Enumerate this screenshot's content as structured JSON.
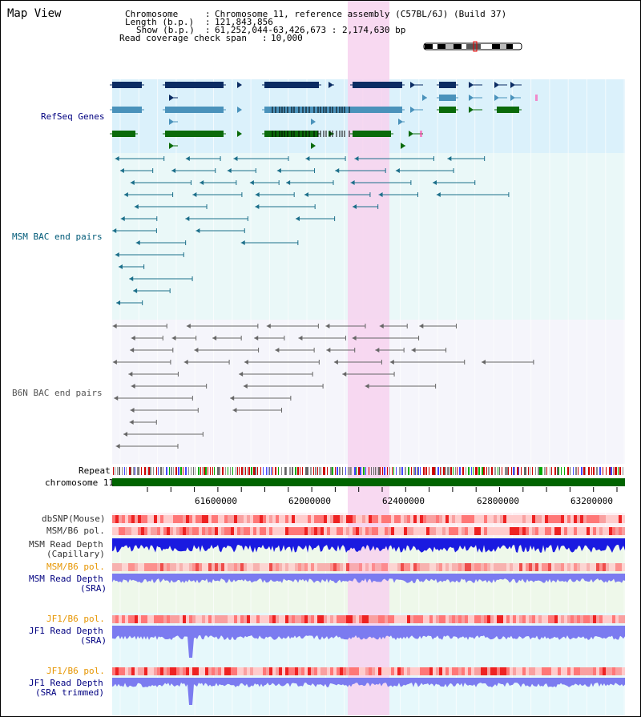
{
  "map_view_title": "Map View",
  "header": {
    "chromosome_label": "Chromosome",
    "chromosome_value": "Chromosome 11, reference assembly (C57BL/6J) (Build 37)",
    "length_label": "Length (b.p.)",
    "length_value": "121,843,856",
    "show_label": "Show (b.p.)",
    "show_value": "61,252,044-63,426,673 : 2,174,630 bp",
    "coverage_label": "Read coverage check span",
    "coverage_value": "10,000"
  },
  "tracks": {
    "refseq": "RefSeq Genes",
    "msm_bac": "MSM BAC end pairs",
    "b6n_bac": "B6N BAC end pairs",
    "repeat": "Repeat",
    "chromosome": "chromosome 11",
    "dbsnp": "dbSNP(Mouse)",
    "msm_b6_pol": "MSM/B6 pol.",
    "msm_depth_cap_1": "MSM Read Depth",
    "msm_depth_cap_2": "(Capillary)",
    "msm_b6_pol_2": "MSM/B6 pol.",
    "msm_depth_sra_1": "MSM Read Depth",
    "msm_depth_sra_2": "(SRA)",
    "jf1_b6_pol": "JF1/B6 pol.",
    "jf1_depth_sra_1": "JF1 Read Depth",
    "jf1_depth_sra_2": "(SRA)",
    "jf1_b6_pol_2": "JF1/B6 pol.",
    "jf1_depth_trim_1": "JF1 Read Depth",
    "jf1_depth_trim_2": "(SRA trimmed)"
  },
  "axis_ticks": [
    "61600000",
    "62000000",
    "62400000",
    "62800000",
    "63200000"
  ],
  "colors": {
    "refseq_bg": "#dbf1fb",
    "msm_bg": "#eaf8f8",
    "b6n_bg": "#f5f5fb",
    "highlight": "#f7d2ee",
    "gene_dark": "#0b2c63",
    "gene_mid": "#4a92bb",
    "gene_green": "#0a6a0a",
    "msm_line": "#1c6f8a",
    "b6n_line": "#666666",
    "chrom_green": "#006400",
    "depth_blue_dark": "#1a1ae0",
    "depth_blue_light": "#7b7bf0",
    "label_navy": "#000080",
    "label_orange": "#e69500"
  }
}
